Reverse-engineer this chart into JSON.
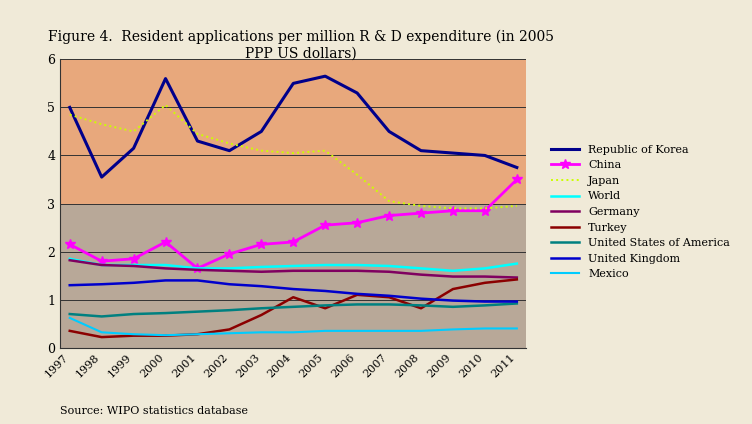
{
  "title": "Figure 4.  Resident applications per million R & D expenditure (in 2005\nPPP US dollars)",
  "source": "Source: WIPO statistics database",
  "years": [
    1997,
    1998,
    1999,
    2000,
    2001,
    2002,
    2003,
    2004,
    2005,
    2006,
    2007,
    2008,
    2009,
    2010,
    2011
  ],
  "series": {
    "Republic of Korea": {
      "color": "#00008B",
      "linewidth": 2.2,
      "marker": null,
      "linestyle": "solid",
      "values": [
        5.0,
        3.55,
        4.15,
        5.6,
        4.3,
        4.1,
        4.5,
        5.5,
        5.65,
        5.3,
        4.5,
        4.1,
        4.05,
        4.0,
        3.75
      ]
    },
    "China": {
      "color": "#FF00FF",
      "linewidth": 2.0,
      "marker": "*",
      "markersize": 7,
      "linestyle": "solid",
      "values": [
        2.15,
        1.8,
        1.85,
        2.2,
        1.65,
        1.95,
        2.15,
        2.2,
        2.55,
        2.6,
        2.75,
        2.8,
        2.85,
        2.85,
        3.5
      ]
    },
    "Japan": {
      "color": "#CCFF00",
      "linewidth": 1.4,
      "marker": null,
      "linestyle": "dotted",
      "values": [
        4.85,
        4.65,
        4.5,
        5.05,
        4.45,
        4.25,
        4.1,
        4.05,
        4.1,
        3.6,
        3.05,
        2.95,
        2.9,
        2.9,
        2.95
      ]
    },
    "World": {
      "color": "#00FFFF",
      "linewidth": 1.8,
      "marker": null,
      "linestyle": "solid",
      "values": [
        1.85,
        1.72,
        1.72,
        1.72,
        1.65,
        1.65,
        1.68,
        1.7,
        1.72,
        1.72,
        1.7,
        1.65,
        1.6,
        1.65,
        1.75
      ]
    },
    "Germany": {
      "color": "#800060",
      "linewidth": 1.8,
      "marker": null,
      "linestyle": "solid",
      "values": [
        1.82,
        1.72,
        1.7,
        1.65,
        1.62,
        1.6,
        1.58,
        1.6,
        1.6,
        1.6,
        1.58,
        1.52,
        1.48,
        1.48,
        1.46
      ]
    },
    "Turkey": {
      "color": "#8B0000",
      "linewidth": 1.8,
      "marker": null,
      "linestyle": "solid",
      "values": [
        0.35,
        0.22,
        0.25,
        0.25,
        0.28,
        0.38,
        0.68,
        1.05,
        0.82,
        1.1,
        1.05,
        0.82,
        1.22,
        1.35,
        1.42
      ]
    },
    "United States of America": {
      "color": "#008080",
      "linewidth": 1.8,
      "marker": null,
      "linestyle": "solid",
      "values": [
        0.7,
        0.65,
        0.7,
        0.72,
        0.75,
        0.78,
        0.82,
        0.85,
        0.88,
        0.9,
        0.9,
        0.88,
        0.85,
        0.88,
        0.92
      ]
    },
    "United Kingdom": {
      "color": "#0000CC",
      "linewidth": 1.8,
      "marker": null,
      "linestyle": "solid",
      "values": [
        1.3,
        1.32,
        1.35,
        1.4,
        1.4,
        1.32,
        1.28,
        1.22,
        1.18,
        1.12,
        1.08,
        1.02,
        0.98,
        0.96,
        0.96
      ]
    },
    "Mexico": {
      "color": "#00CCFF",
      "linewidth": 1.5,
      "marker": null,
      "linestyle": "solid",
      "values": [
        0.62,
        0.32,
        0.28,
        0.26,
        0.28,
        0.3,
        0.32,
        0.32,
        0.35,
        0.35,
        0.35,
        0.35,
        0.38,
        0.4,
        0.4
      ]
    }
  },
  "ylim": [
    0,
    6
  ],
  "yticks": [
    0,
    1,
    2,
    3,
    4,
    5,
    6
  ],
  "bg_upper_color": "#E8A87C",
  "bg_lower_color": "#B8A898",
  "bg_split": 3.0,
  "plot_bg": "#E8E0D0",
  "fig_bg": "#F0EAD8",
  "spine_color": "#333333",
  "grid_color": "#333333"
}
